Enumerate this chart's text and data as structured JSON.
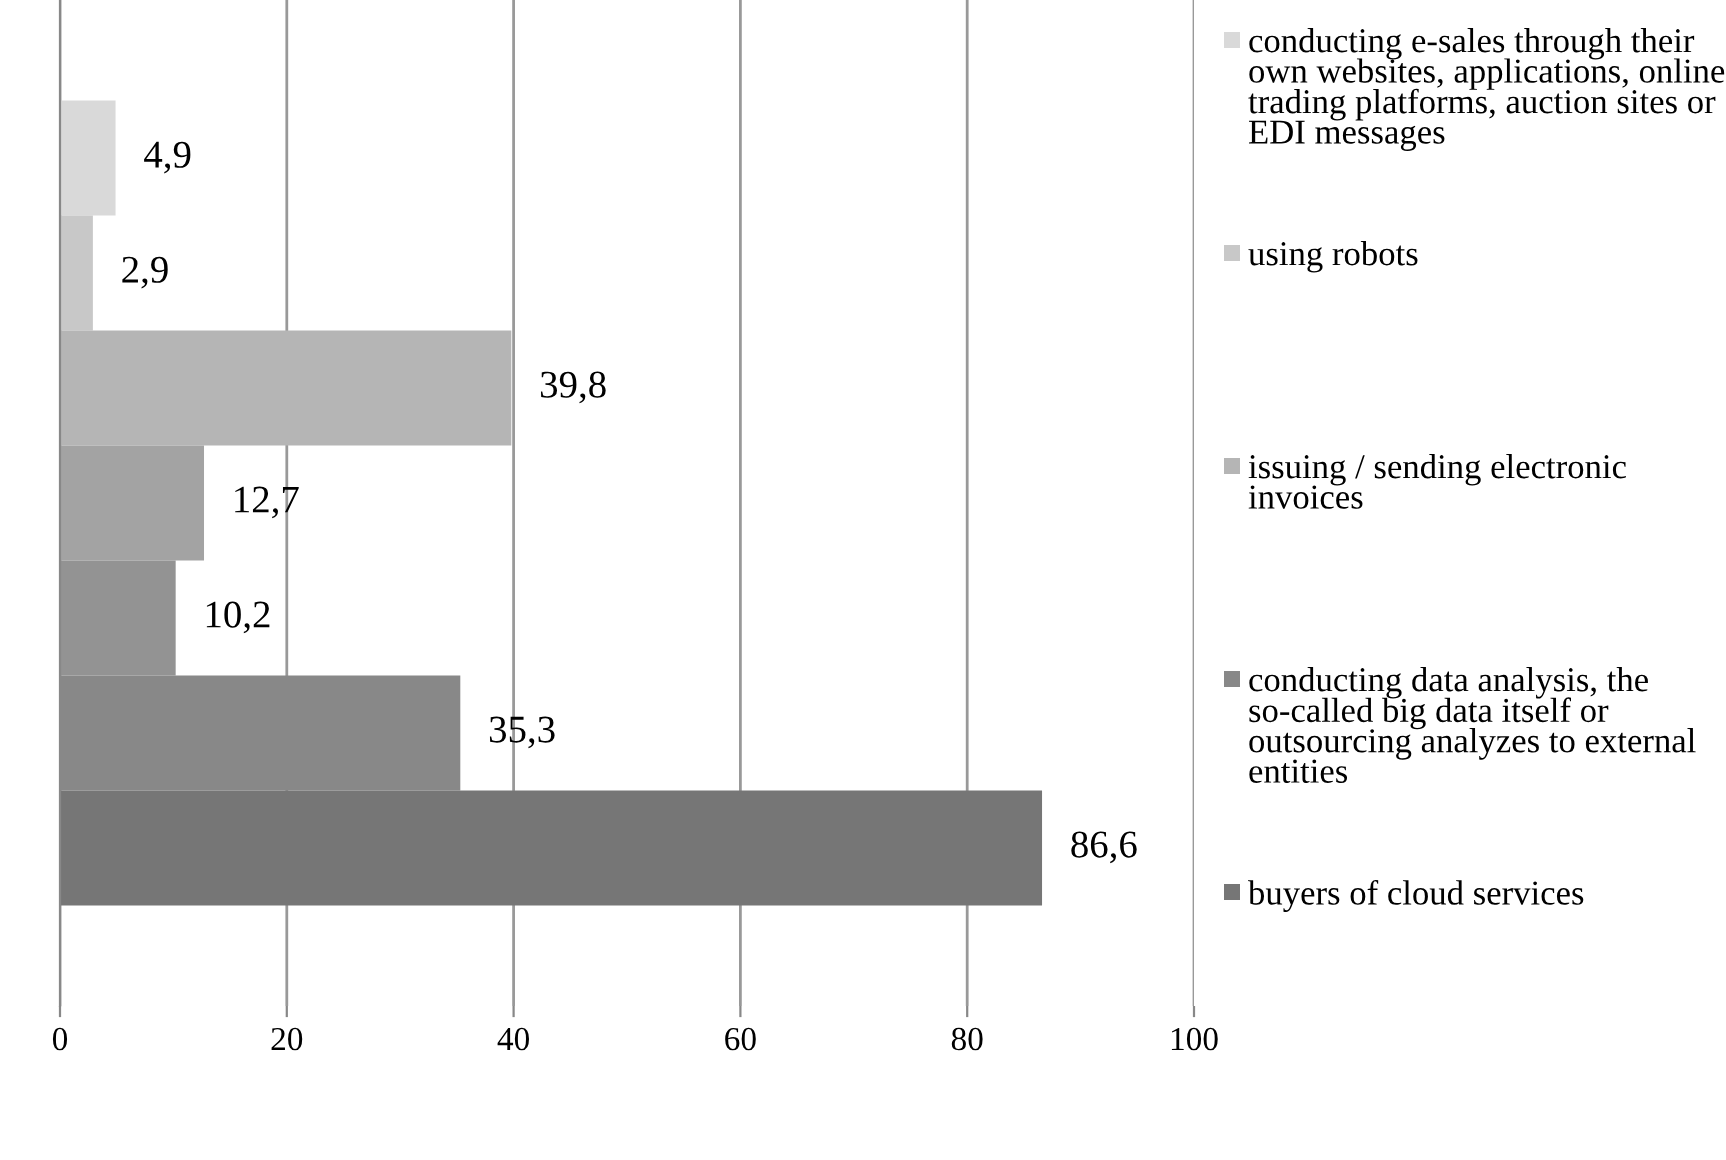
{
  "chart_data": {
    "type": "bar",
    "orientation": "horizontal",
    "categories": [
      null
    ],
    "series": [
      {
        "name": "conducting e-sales through their own websites, applications, online trading platforms, auction sites or EDI messages",
        "color": "#d9d9d9",
        "values": [
          4.9
        ],
        "value_labels": [
          "4,9"
        ]
      },
      {
        "name": "using robots",
        "color": "#c8c8c8",
        "values": [
          2.9
        ],
        "value_labels": [
          "2,9"
        ]
      },
      {
        "name": "issuing / sending electronic invoices",
        "color": "#b5b5b5",
        "values": [
          39.8
        ],
        "value_labels": [
          "39,8"
        ]
      },
      {
        "color": "#a3a3a3",
        "values": [
          12.7
        ],
        "value_labels": [
          "12,7"
        ]
      },
      {
        "color": "#939393",
        "values": [
          10.2
        ],
        "value_labels": [
          "10,2"
        ]
      },
      {
        "name": "conducting data analysis, the so-called big data itself or outsourcing analyzes to external entities",
        "color": "#888888",
        "values": [
          35.3
        ],
        "value_labels": [
          "35,3"
        ]
      },
      {
        "name": "buyers of cloud services",
        "color": "#767676",
        "values": [
          86.6
        ],
        "value_labels": [
          "86,6"
        ]
      }
    ],
    "xlim": [
      0,
      100
    ],
    "xticks": [
      0,
      20,
      40,
      60,
      80,
      100
    ],
    "grid": "x",
    "legend": "right",
    "tick_labels": "x"
  }
}
